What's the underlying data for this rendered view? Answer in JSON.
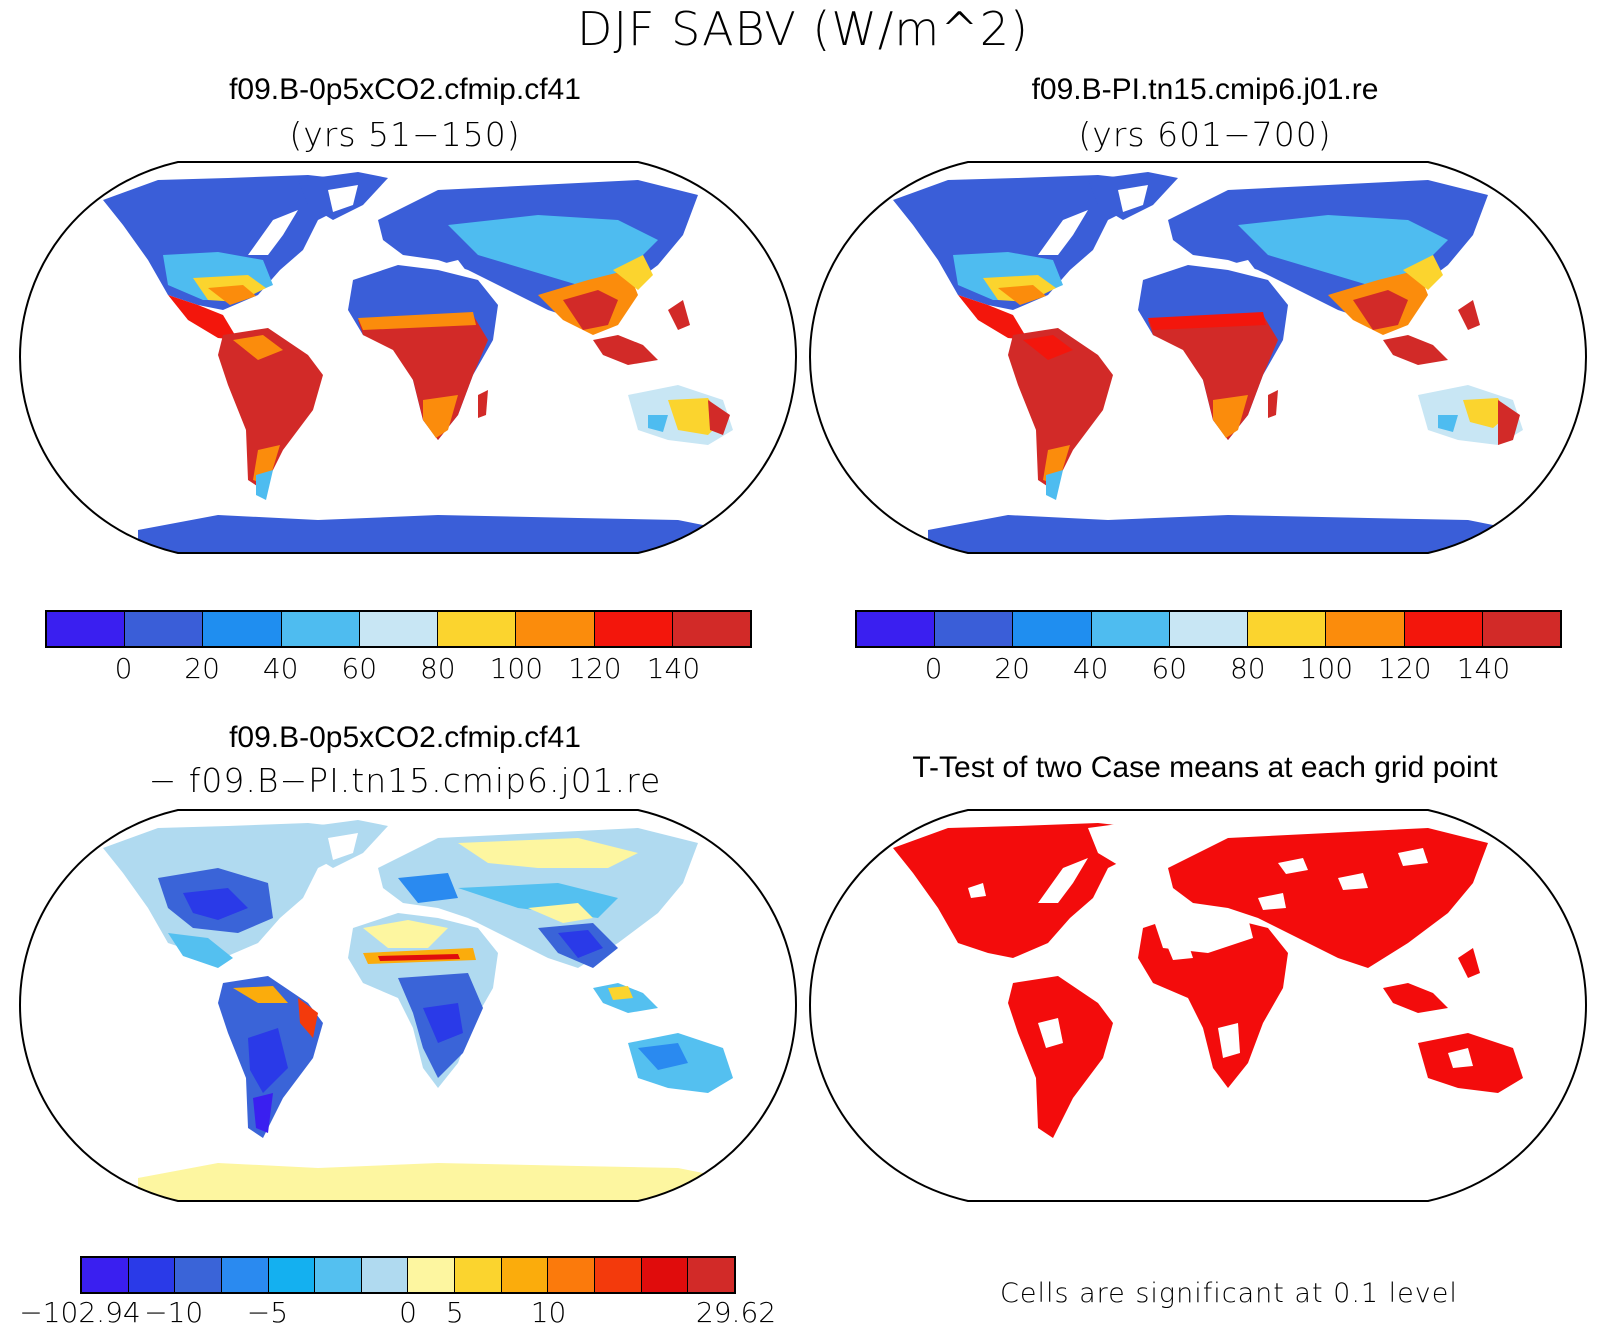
{
  "title": "DJF SABV (W/m^2)",
  "panels": [
    {
      "title": "f09.B-0p5xCO2.cfmip.cf41",
      "subtitle": "(yrs 51−150)"
    },
    {
      "title": "f09.B-PI.tn15.cmip6.j01.re",
      "subtitle": "(yrs 601−700)"
    },
    {
      "title": "f09.B-0p5xCO2.cfmip.cf41",
      "subtitle": "− f09.B−PI.tn15.cmip6.j01.re"
    },
    {
      "title": "T-Test of two Case means at each grid point",
      "subtitle": ""
    }
  ],
  "colorbar_main": {
    "colors": [
      "#3a1ff0",
      "#3a5ed8",
      "#1f8ef0",
      "#4ebcf0",
      "#c8e6f4",
      "#fbd42e",
      "#fb8c0c",
      "#f3160c",
      "#d22a28"
    ],
    "labels": [
      "0",
      "20",
      "40",
      "60",
      "80",
      "100",
      "120",
      "140"
    ]
  },
  "colorbar_diff": {
    "colors": [
      "#3a1ff0",
      "#2a3ae8",
      "#3a64d8",
      "#2a8af0",
      "#14b0f0",
      "#54c0f0",
      "#b0daf0",
      "#fdf6a0",
      "#fbd42e",
      "#fbac0c",
      "#fb7a0c",
      "#f33a0c",
      "#e00c0c",
      "#d22a28"
    ],
    "labels": [
      "−102.94",
      "−10",
      "−5",
      "0",
      "5",
      "10",
      "29.62"
    ]
  },
  "significance_note": "Cells are significant at 0.1 level",
  "colors": {
    "ocean": "#ffffff",
    "significance": "#f30c0c"
  }
}
